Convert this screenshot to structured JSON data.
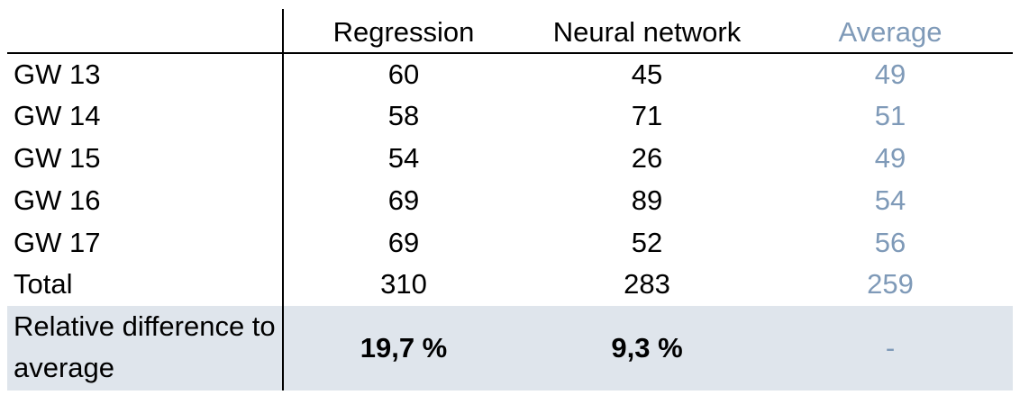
{
  "chart_data": {
    "type": "table",
    "columns": [
      "Regression",
      "Neural network",
      "Average"
    ],
    "rows": [
      {
        "label": "GW 13",
        "values": [
          "60",
          "45",
          "49"
        ]
      },
      {
        "label": "GW 14",
        "values": [
          "58",
          "71",
          "51"
        ]
      },
      {
        "label": "GW 15",
        "values": [
          "54",
          "26",
          "49"
        ]
      },
      {
        "label": "GW 16",
        "values": [
          "69",
          "89",
          "54"
        ]
      },
      {
        "label": "GW 17",
        "values": [
          "69",
          "52",
          "56"
        ]
      },
      {
        "label": "Total",
        "values": [
          "310",
          "283",
          "259"
        ]
      }
    ],
    "footer": {
      "label": "Relative difference to average",
      "values": [
        "19,7 %",
        "9,3 %",
        "-"
      ]
    },
    "colors": {
      "average_text": "#7f9ab8",
      "footer_bg": "#dfe5ec"
    }
  }
}
